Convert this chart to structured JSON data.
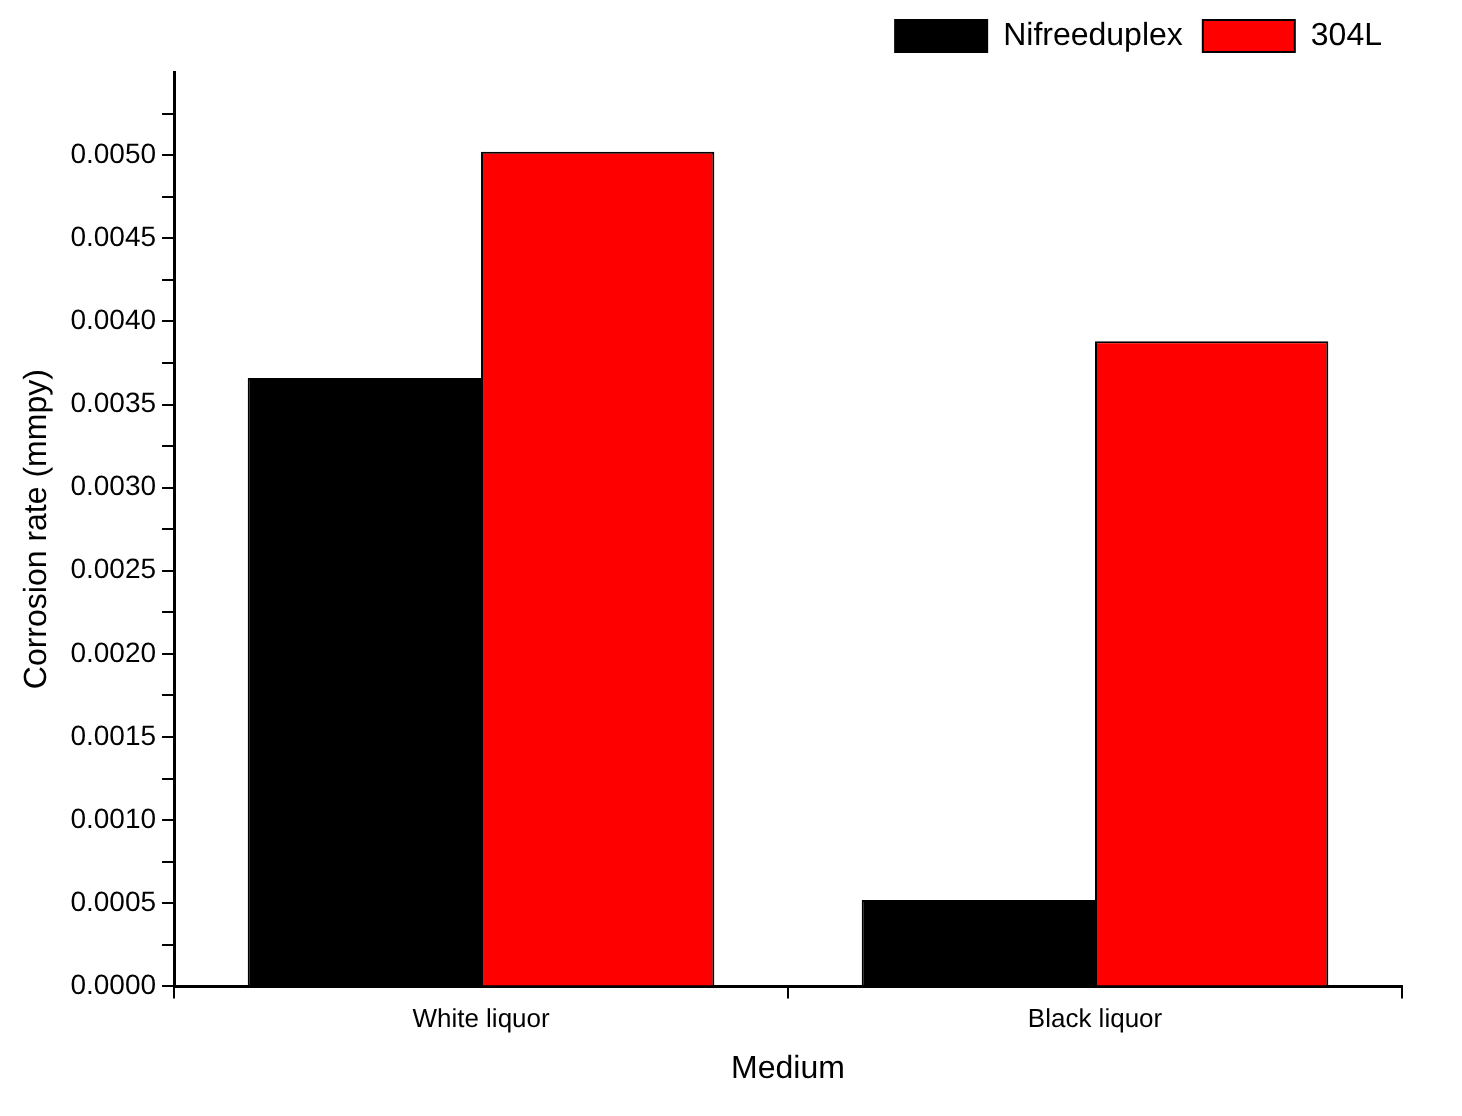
{
  "chart_data": {
    "type": "bar",
    "xlabel": "Medium",
    "ylabel": "Corrosion rate (mmpy)",
    "categories": [
      "White liquor",
      "Black liquor"
    ],
    "series": [
      {
        "name": "Nifreeduplex",
        "color": "#000000",
        "values": [
          0.00366,
          0.00052
        ]
      },
      {
        "name": "304L",
        "color": "#ff0000",
        "values": [
          0.00502,
          0.00388
        ]
      }
    ],
    "ylim": [
      0,
      0.0055
    ],
    "yticks": [
      {
        "value": 0,
        "label": "0.0000"
      },
      {
        "value": 0.00025,
        "label": null
      },
      {
        "value": 0.0005,
        "label": "0.0005"
      },
      {
        "value": 0.00075,
        "label": null
      },
      {
        "value": 0.001,
        "label": "0.0010"
      },
      {
        "value": 0.00125,
        "label": null
      },
      {
        "value": 0.0015,
        "label": "0.0015"
      },
      {
        "value": 0.00175,
        "label": null
      },
      {
        "value": 0.002,
        "label": "0.0020"
      },
      {
        "value": 0.00225,
        "label": null
      },
      {
        "value": 0.0025,
        "label": "0.0025"
      },
      {
        "value": 0.00275,
        "label": null
      },
      {
        "value": 0.003,
        "label": "0.0030"
      },
      {
        "value": 0.00325,
        "label": null
      },
      {
        "value": 0.0035,
        "label": "0.0035"
      },
      {
        "value": 0.00375,
        "label": null
      },
      {
        "value": 0.004,
        "label": "0.0040"
      },
      {
        "value": 0.00425,
        "label": null
      },
      {
        "value": 0.0045,
        "label": "0.0045"
      },
      {
        "value": 0.00475,
        "label": null
      },
      {
        "value": 0.005,
        "label": "0.0050"
      },
      {
        "value": 0.00525,
        "label": null
      }
    ],
    "grid": false,
    "legend": "top right"
  }
}
